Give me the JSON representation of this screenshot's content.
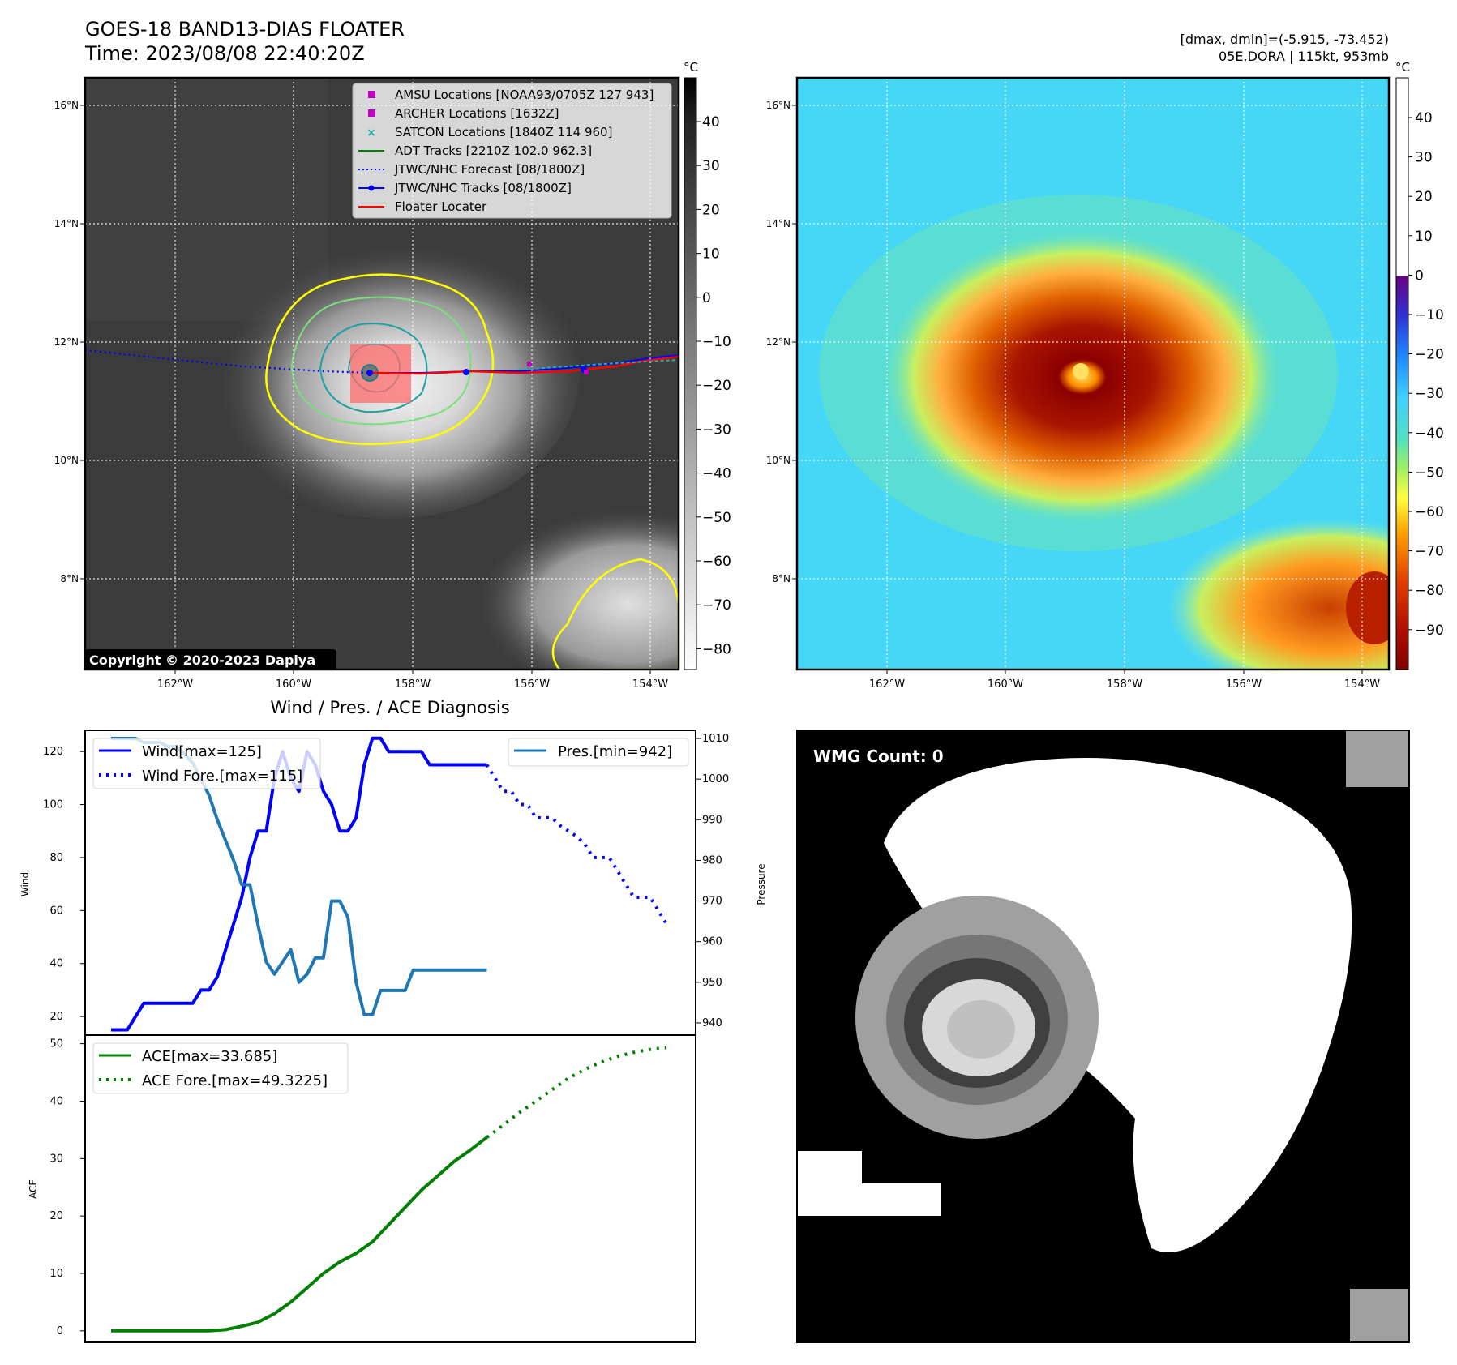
{
  "header": {
    "title": "GOES-18 BAND13-DIAS FLOATER",
    "time": "Time: 2023/08/08 22:40:20Z",
    "dmax_dmin": "[dmax, dmin]=(-5.915, -73.452)",
    "storm": "05E.DORA | 115kt, 953mb"
  },
  "maps": {
    "lat_ticks": [
      "16°N",
      "14°N",
      "12°N",
      "10°N",
      "8°N"
    ],
    "lon_ticks": [
      "162°W",
      "160°W",
      "158°W",
      "156°W",
      "154°W"
    ],
    "copyright": "Copyright © 2020-2023 Dapiya",
    "gray_colorbar": {
      "unit": "°C",
      "ticks": [
        "40",
        "30",
        "20",
        "10",
        "0",
        "−10",
        "−20",
        "−30",
        "−40",
        "−50",
        "−60",
        "−70",
        "−80"
      ]
    },
    "color_colorbar": {
      "unit": "°C",
      "ticks": [
        "40",
        "30",
        "20",
        "10",
        "0",
        "−10",
        "−20",
        "−30",
        "−40",
        "−50",
        "−60",
        "−70",
        "−80",
        "−90"
      ]
    },
    "legend": [
      {
        "label": "AMSU Locations [NOAA93/0705Z 127 943]",
        "color": "#c000c0",
        "marker": "square"
      },
      {
        "label": "ARCHER Locations [1632Z]",
        "color": "#c000c0",
        "marker": "square"
      },
      {
        "label": "SATCON Locations [1840Z 114 960]",
        "color": "#20b2aa",
        "marker": "x"
      },
      {
        "label": "ADT Tracks [2210Z 102.0 962.3]",
        "color": "#008000",
        "marker": "line"
      },
      {
        "label": "JTWC/NHC Forecast [08/1800Z]",
        "color": "#0000ff",
        "marker": "dotted"
      },
      {
        "label": "JTWC/NHC Tracks [08/1800Z]",
        "color": "#0000ff",
        "marker": "line-dot"
      },
      {
        "label": "Floater Locater",
        "color": "#ff0000",
        "marker": "line"
      }
    ]
  },
  "diagnosis": {
    "title": "Wind / Pres. / ACE Diagnosis",
    "wind_ylabel": "Wind",
    "pressure_ylabel": "Pressure",
    "ace_ylabel": "ACE",
    "wind_ticks": [
      "20",
      "40",
      "60",
      "80",
      "100",
      "120"
    ],
    "pressure_ticks": [
      "940",
      "950",
      "960",
      "970",
      "980",
      "990",
      "1000",
      "1010"
    ],
    "ace_ticks": [
      "0",
      "10",
      "20",
      "30",
      "40",
      "50"
    ],
    "legend_wind": "Wind[max=125]",
    "legend_wind_fore": "Wind Fore.[max=115]",
    "legend_pres": "Pres.[min=942]",
    "legend_ace": "ACE[max=33.685]",
    "legend_ace_fore": "ACE Fore.[max=49.3225]"
  },
  "wmg": {
    "label": "WMG Count: 0"
  },
  "chart_data": [
    {
      "type": "line",
      "title": "Wind / Pres. / ACE Diagnosis",
      "ylabel": "Wind",
      "ylim": [
        13,
        128
      ],
      "series": [
        {
          "name": "Wind[max=125]",
          "color": "#0000ff",
          "style": "solid",
          "x": [
            0,
            1,
            2,
            3,
            4,
            5,
            6,
            7,
            8,
            9,
            10,
            11,
            12,
            13,
            14,
            15,
            16,
            17,
            18,
            19,
            20,
            21,
            22,
            23,
            24,
            25,
            26,
            27,
            28,
            29,
            30,
            31,
            32,
            33,
            34,
            35,
            36,
            37,
            38,
            39,
            40,
            41,
            42,
            43,
            44,
            45,
            46
          ],
          "values": [
            15,
            15,
            15,
            20,
            25,
            25,
            25,
            25,
            25,
            25,
            25,
            30,
            30,
            35,
            45,
            55,
            65,
            80,
            90,
            90,
            110,
            120,
            110,
            105,
            120,
            115,
            105,
            100,
            90,
            90,
            95,
            115,
            125,
            125,
            120,
            120,
            120,
            120,
            120,
            115,
            115,
            115,
            115,
            115,
            115,
            115,
            115
          ]
        },
        {
          "name": "Wind Fore.[max=115]",
          "color": "#0000ff",
          "style": "dotted",
          "x": [
            46,
            47,
            48,
            49,
            50,
            51,
            52,
            53,
            54,
            55,
            56,
            57,
            58,
            59,
            60,
            61,
            62,
            63,
            64,
            65,
            66,
            67,
            68
          ],
          "values": [
            115,
            110,
            105,
            105,
            100,
            100,
            95,
            95,
            95,
            92,
            90,
            88,
            85,
            80,
            80,
            80,
            75,
            70,
            65,
            65,
            65,
            60,
            55
          ]
        }
      ]
    },
    {
      "type": "line",
      "ylabel": "Pressure",
      "ylim": [
        937,
        1012
      ],
      "series": [
        {
          "name": "Pres.[min=942]",
          "color": "#1f77b4",
          "style": "solid",
          "x": [
            0,
            1,
            2,
            3,
            4,
            5,
            6,
            7,
            8,
            9,
            10,
            11,
            12,
            13,
            14,
            15,
            16,
            17,
            18,
            19,
            20,
            21,
            22,
            23,
            24,
            25,
            26,
            27,
            28,
            29,
            30,
            31,
            32,
            33,
            34,
            35,
            36,
            37,
            38,
            39,
            40,
            41,
            42,
            43,
            44,
            45,
            46
          ],
          "values": [
            1010,
            1010,
            1010,
            1010,
            1009,
            1009,
            1009,
            1008,
            1008,
            1006,
            1004,
            1000,
            996,
            990,
            985,
            980,
            974,
            974,
            964,
            955,
            952,
            955,
            958,
            950,
            952,
            956,
            956,
            970,
            970,
            966,
            950,
            942,
            942,
            948,
            948,
            948,
            948,
            953,
            953,
            953,
            953,
            953,
            953,
            953,
            953,
            953,
            953
          ]
        }
      ]
    },
    {
      "type": "line",
      "ylabel": "ACE",
      "ylim": [
        -2,
        51.5
      ],
      "series": [
        {
          "name": "ACE[max=33.685]",
          "color": "#008000",
          "style": "solid",
          "x": [
            0,
            2,
            4,
            6,
            8,
            10,
            12,
            14,
            16,
            18,
            20,
            22,
            24,
            26,
            28,
            30,
            32,
            34,
            36,
            38,
            40,
            42,
            44,
            46
          ],
          "values": [
            0,
            0,
            0,
            0,
            0,
            0,
            0,
            0.2,
            0.8,
            1.5,
            3.0,
            5.0,
            7.5,
            10.0,
            12.0,
            13.5,
            15.5,
            18.5,
            21.5,
            24.5,
            27.0,
            29.5,
            31.5,
            33.685
          ]
        },
        {
          "name": "ACE Fore.[max=49.3225]",
          "color": "#008000",
          "style": "dotted",
          "x": [
            46,
            48,
            50,
            52,
            54,
            56,
            58,
            60,
            62,
            64,
            66,
            68
          ],
          "values": [
            33.685,
            35.8,
            38.0,
            40.0,
            42.0,
            44.0,
            45.5,
            46.8,
            47.8,
            48.5,
            49.0,
            49.3225
          ]
        }
      ]
    }
  ]
}
